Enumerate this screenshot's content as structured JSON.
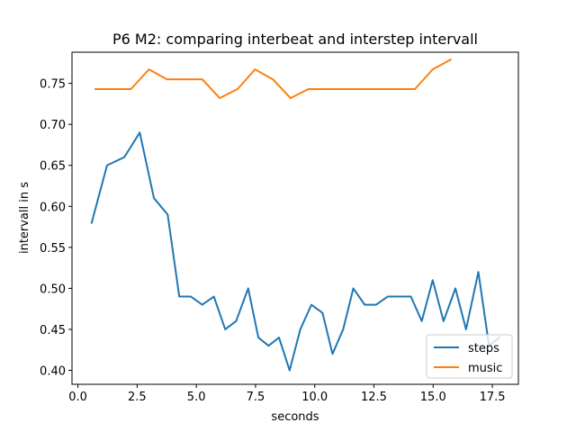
{
  "chart_data": {
    "type": "line",
    "title": "P6 M2: comparing interbeat and interstep intervall",
    "xlabel": "seconds",
    "ylabel": "intervall in s",
    "xlim": [
      -0.25,
      18.6
    ],
    "ylim": [
      0.383,
      0.788
    ],
    "xticks": [
      0.0,
      2.5,
      5.0,
      7.5,
      10.0,
      12.5,
      15.0,
      17.5
    ],
    "xtick_labels": [
      "0.0",
      "2.5",
      "5.0",
      "7.5",
      "10.0",
      "12.5",
      "15.0",
      "17.5"
    ],
    "yticks": [
      0.4,
      0.45,
      0.5,
      0.55,
      0.6,
      0.65,
      0.7,
      0.75
    ],
    "ytick_labels": [
      "0.40",
      "0.45",
      "0.50",
      "0.55",
      "0.60",
      "0.65",
      "0.70",
      "0.75"
    ],
    "grid": false,
    "legend_position": "lower-right",
    "series": [
      {
        "name": "steps",
        "color": "#1f77b4",
        "x": [
          0.58,
          1.23,
          1.96,
          2.61,
          3.21,
          3.79,
          4.28,
          4.77,
          5.25,
          5.74,
          6.22,
          6.68,
          7.19,
          7.62,
          8.05,
          8.49,
          8.94,
          9.39,
          9.86,
          10.33,
          10.75,
          11.2,
          11.63,
          12.11,
          12.59,
          13.08,
          13.57,
          14.06,
          14.52,
          14.98,
          15.44,
          15.94,
          16.39,
          16.91,
          17.36,
          17.8
        ],
        "y": [
          0.58,
          0.65,
          0.66,
          0.69,
          0.61,
          0.59,
          0.49,
          0.49,
          0.48,
          0.49,
          0.45,
          0.46,
          0.5,
          0.44,
          0.43,
          0.44,
          0.4,
          0.45,
          0.48,
          0.47,
          0.42,
          0.45,
          0.5,
          0.48,
          0.48,
          0.49,
          0.49,
          0.49,
          0.46,
          0.51,
          0.46,
          0.5,
          0.45,
          0.52,
          0.43,
          0.44
        ]
      },
      {
        "name": "music",
        "color": "#ff7f0e",
        "x": [
          0.74,
          1.49,
          2.24,
          3.0,
          3.76,
          4.5,
          5.25,
          5.99,
          6.74,
          7.48,
          8.23,
          8.98,
          9.73,
          10.48,
          11.23,
          11.98,
          12.73,
          13.48,
          14.23,
          14.98,
          15.74
        ],
        "y": [
          0.743,
          0.743,
          0.743,
          0.767,
          0.755,
          0.755,
          0.755,
          0.732,
          0.743,
          0.767,
          0.755,
          0.732,
          0.743,
          0.743,
          0.743,
          0.743,
          0.743,
          0.743,
          0.743,
          0.767,
          0.779
        ]
      }
    ]
  }
}
